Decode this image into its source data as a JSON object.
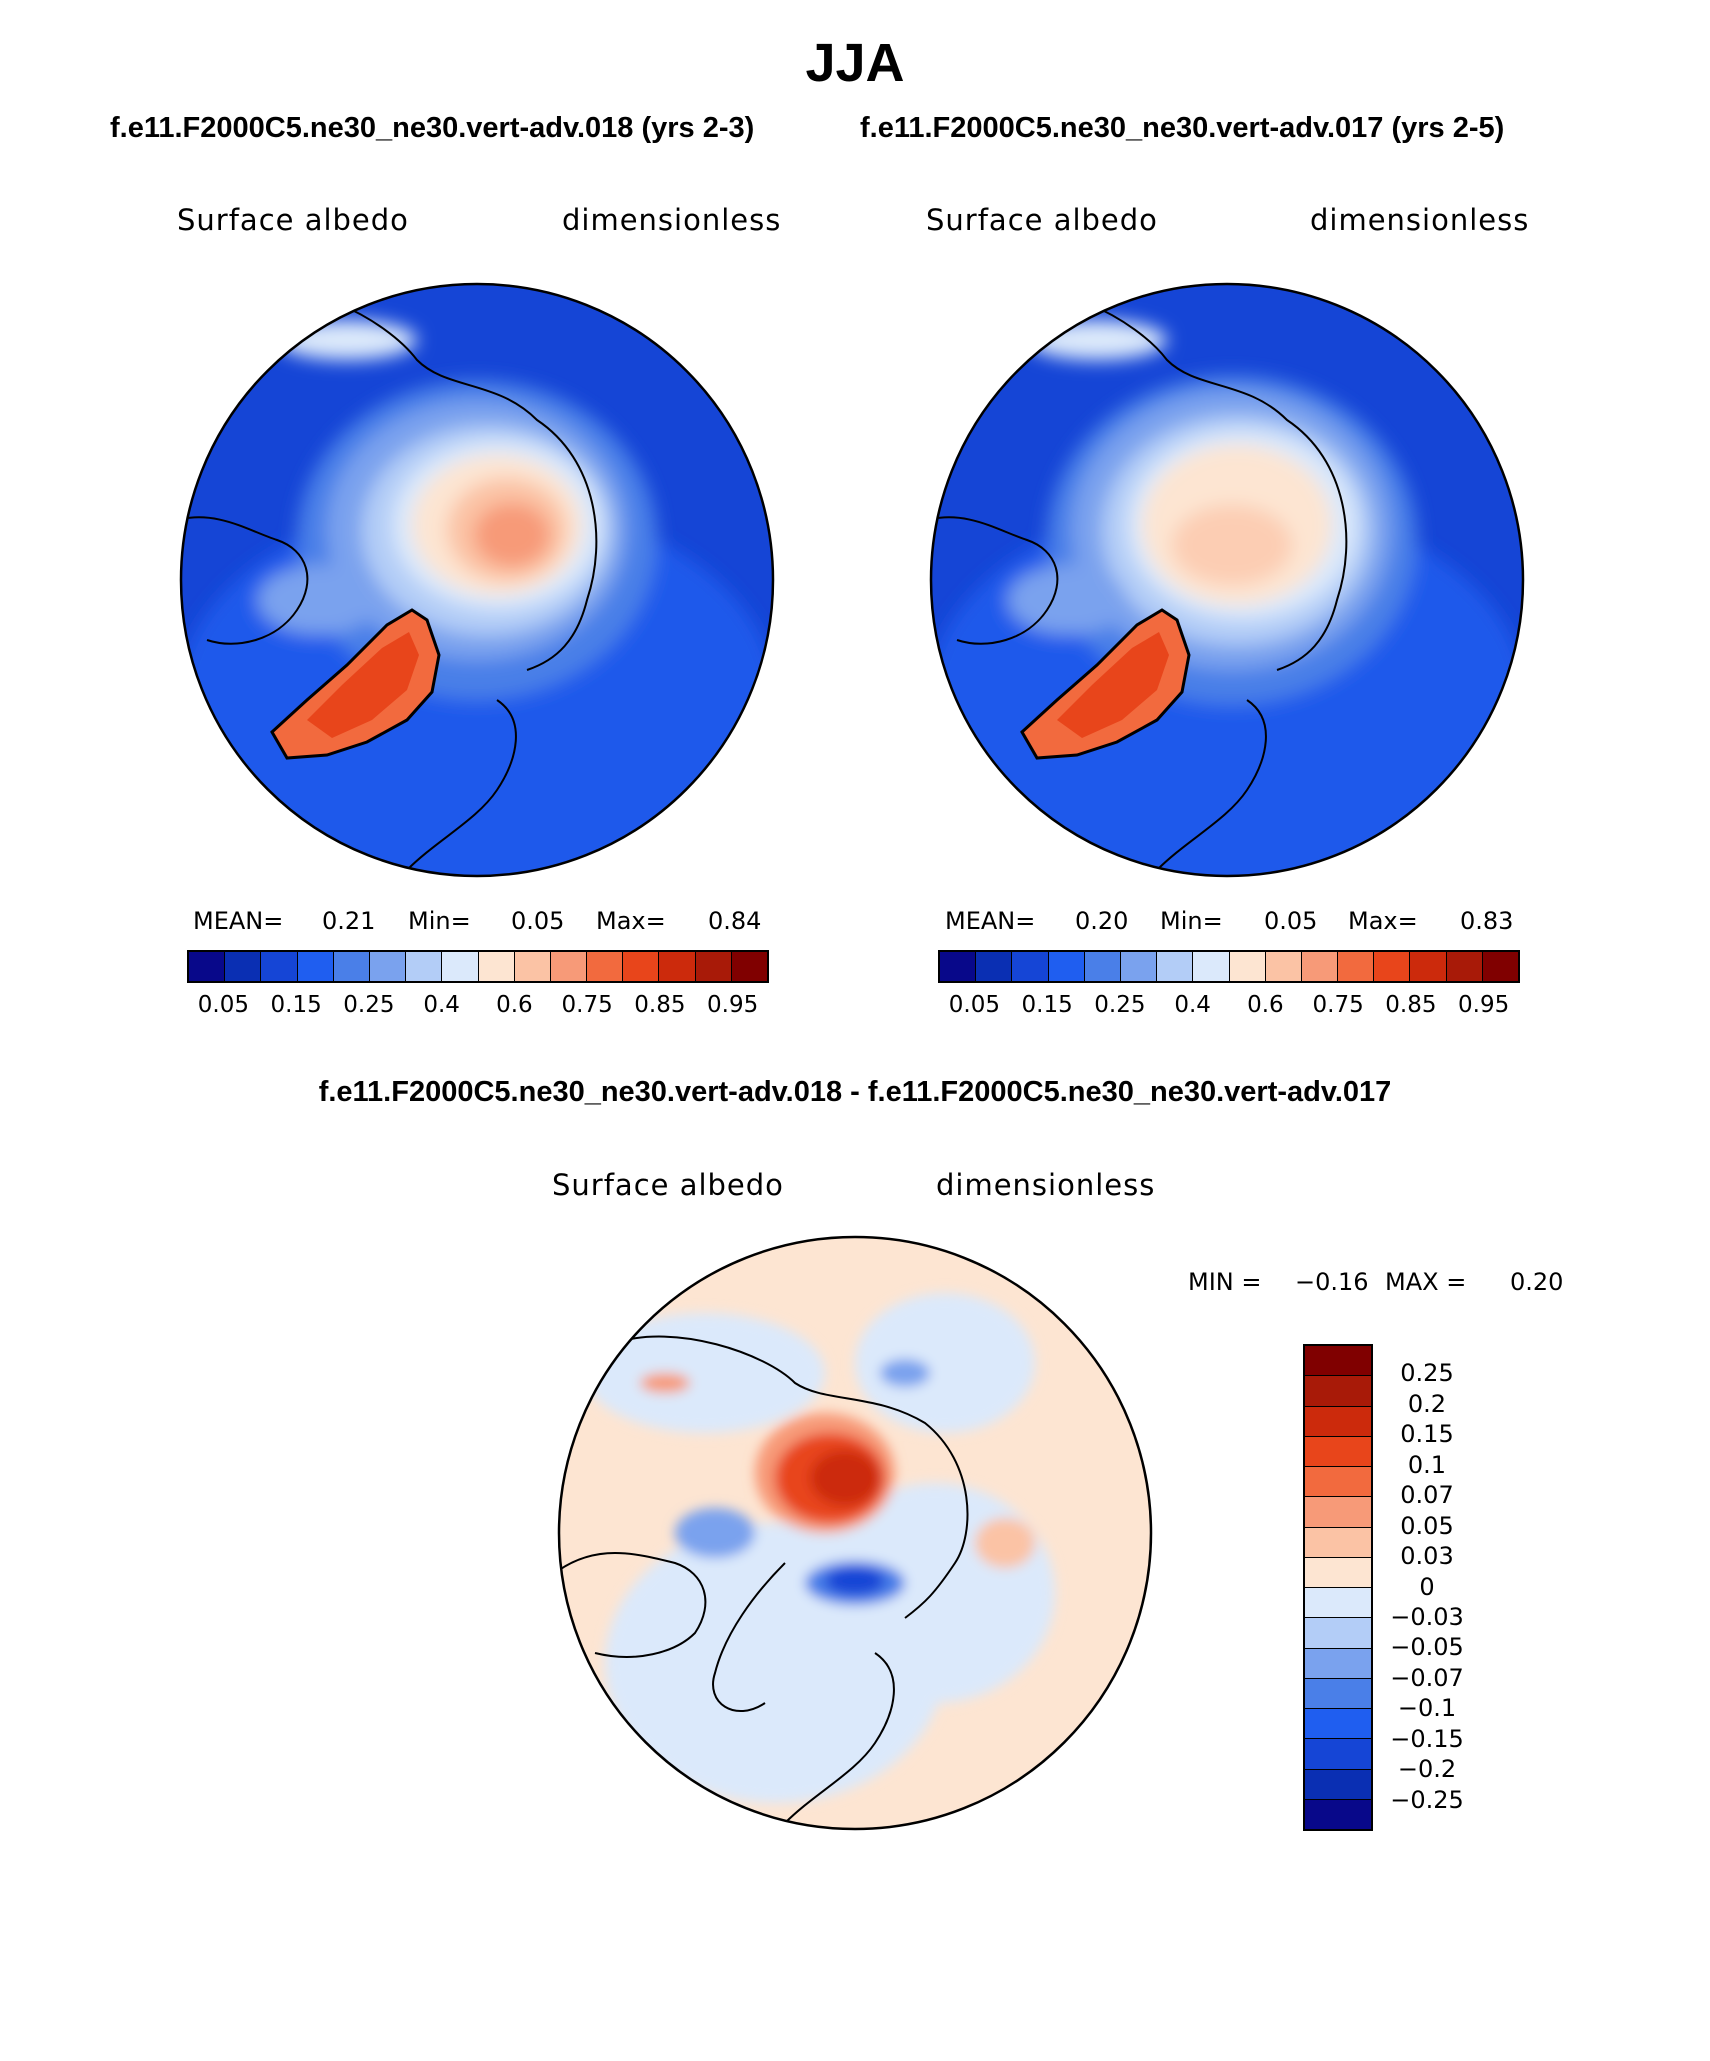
{
  "title": "JJA",
  "subtitles": {
    "left": "f.e11.F2000C5.ne30_ne30.vert-adv.018 (yrs 2-3)",
    "right": "f.e11.F2000C5.ne30_ne30.vert-adv.017 (yrs 2-5)",
    "diff": "f.e11.F2000C5.ne30_ne30.vert-adv.018 - f.e11.F2000C5.ne30_ne30.vert-adv.017"
  },
  "panels": [
    {
      "variable": "Surface albedo",
      "units": "dimensionless",
      "mean_label": "MEAN=",
      "mean_value": "0.21",
      "min_label": "Min=",
      "min_value": "0.05",
      "max_label": "Max=",
      "max_value": "0.84"
    },
    {
      "variable": "Surface albedo",
      "units": "dimensionless",
      "mean_label": "MEAN=",
      "mean_value": "0.20",
      "min_label": "Min=",
      "min_value": "0.05",
      "max_label": "Max=",
      "max_value": "0.83"
    }
  ],
  "diff_panel": {
    "variable": "Surface albedo",
    "units": "dimensionless",
    "min_label": "MIN =",
    "min_value": "−0.16",
    "max_label": "MAX =",
    "max_value": "0.20"
  },
  "colorbar_abs": {
    "ticks": [
      "0.05",
      "0.15",
      "0.25",
      "0.4",
      "0.6",
      "0.75",
      "0.85",
      "0.95"
    ],
    "colors": [
      "#08088a",
      "#0a2fb3",
      "#1545d6",
      "#1f5ef0",
      "#4a7fe8",
      "#7aa2ee",
      "#b3cdf7",
      "#dbe9fb",
      "#fde5d2",
      "#fbc3a5",
      "#f79a78",
      "#f26a3e",
      "#e8451b",
      "#cc2a0c",
      "#a81a08",
      "#800000"
    ]
  },
  "colorbar_diff": {
    "labels": [
      "0.25",
      "0.2",
      "0.15",
      "0.1",
      "0.07",
      "0.05",
      "0.03",
      "0",
      "−0.03",
      "−0.05",
      "−0.07",
      "−0.1",
      "−0.15",
      "−0.2",
      "−0.25"
    ],
    "colors": [
      "#800000",
      "#a81a08",
      "#cc2a0c",
      "#e8451b",
      "#f26a3e",
      "#f79a78",
      "#fbc3a5",
      "#fde5d2",
      "#dbe9fb",
      "#b3cdf7",
      "#7aa2ee",
      "#4a7fe8",
      "#1f5ef0",
      "#1545d6",
      "#0a2fb3",
      "#08088a"
    ]
  }
}
